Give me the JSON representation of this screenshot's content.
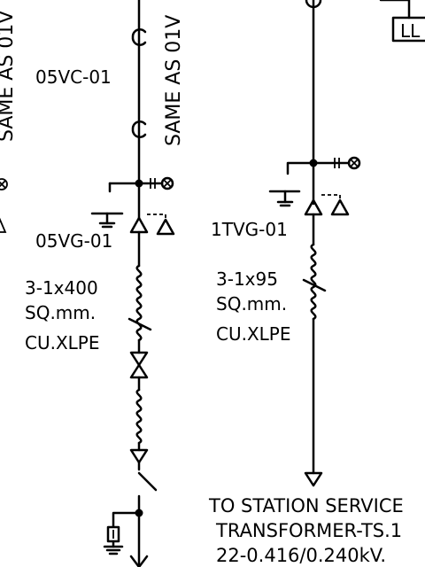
{
  "labels": {
    "left_rotated": "SAME AS 01V",
    "mid_rotated": "SAME AS 01V",
    "vc_left": "05VC-01",
    "vg_left": "05VG-01",
    "cable_left_size": "3-1x400",
    "cable_left_unit": "SQ.mm.",
    "cable_left_type": "CU.XLPE",
    "vg_right": "1TVG-01",
    "cable_right_size": "3-1x95",
    "cable_right_unit": "SQ.mm.",
    "cable_right_type": "CU.XLPE",
    "ll_box": "LL",
    "dest_line1": "TO STATION SERVICE",
    "dest_line2": "TRANSFORMER-TS.1",
    "dest_line3": "22-0.416/0.240kV."
  }
}
